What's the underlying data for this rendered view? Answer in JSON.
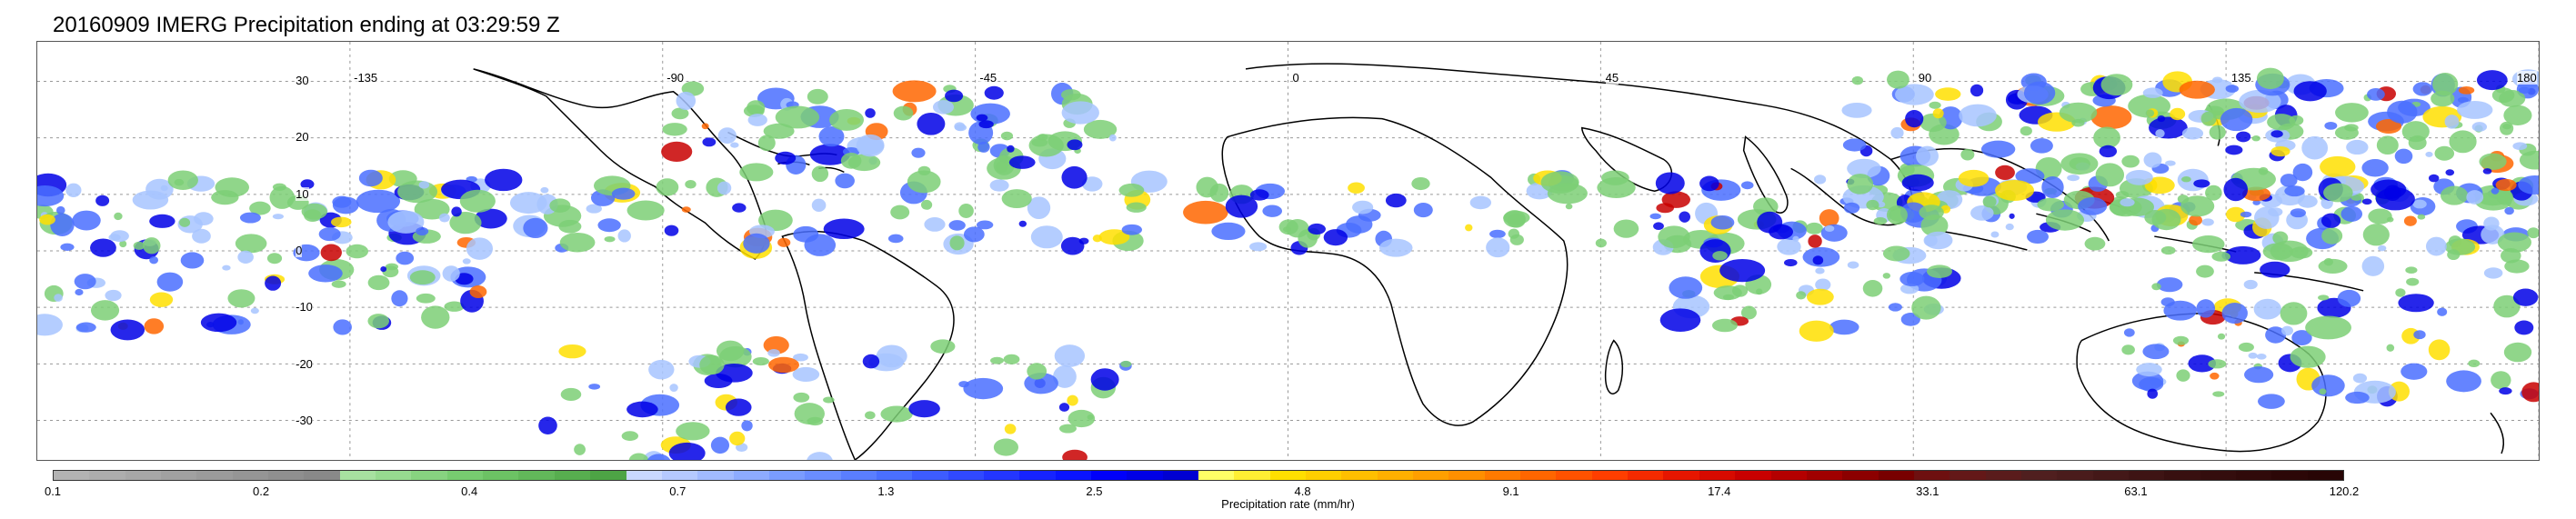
{
  "title": "20160909 IMERG Precipitation ending at 03:29:59 Z",
  "map": {
    "lon_labels": [
      "-135",
      "-90",
      "-45",
      "0",
      "45",
      "90",
      "135",
      "180"
    ],
    "lat_labels": [
      "30",
      "20",
      "10",
      "0",
      "-10",
      "-20",
      "-30"
    ],
    "lon_values": [
      -135,
      -90,
      -45,
      0,
      45,
      90,
      135,
      180
    ],
    "lat_values": [
      30,
      20,
      10,
      0,
      -10,
      -20,
      -30
    ],
    "lon_range": [
      -180,
      180
    ],
    "lat_range": [
      -37,
      37
    ],
    "grid": "dotted"
  },
  "colorbar": {
    "label": "Precipitation rate (mm/hr)",
    "tick_labels": [
      "0.1",
      "0.2",
      "0.4",
      "0.7",
      "1.3",
      "2.5",
      "4.8",
      "9.1",
      "17.4",
      "33.1",
      "63.1",
      "120.2"
    ],
    "colors": [
      "#b3b3b3",
      "#adadad",
      "#a7a7a7",
      "#a1a1a1",
      "#9b9b9b",
      "#959595",
      "#8f8f8f",
      "#898989",
      "#a7e1a0",
      "#97da90",
      "#87d380",
      "#77cc70",
      "#6cc264",
      "#62b85a",
      "#57ae4f",
      "#4da445",
      "#c9d8ff",
      "#b5c9ff",
      "#a1baff",
      "#8dabff",
      "#7a9cff",
      "#6a8dff",
      "#5a7eff",
      "#4a6fff",
      "#3d5cff",
      "#3049ff",
      "#2336ff",
      "#1623ff",
      "#0a14ff",
      "#0000fa",
      "#0000e6",
      "#0000d2",
      "#ffff66",
      "#ffef33",
      "#ffdf00",
      "#ffcf00",
      "#ffbf00",
      "#ffaf00",
      "#ff9f00",
      "#ff8f00",
      "#ff7a00",
      "#ff6600",
      "#ff5200",
      "#ff3e00",
      "#f52a00",
      "#e61600",
      "#d70a00",
      "#c80000",
      "#b40000",
      "#a00000",
      "#8c0000",
      "#780000",
      "#6e1010",
      "#641818",
      "#5a1c1c",
      "#501f1f",
      "#4a1c1c",
      "#441818",
      "#3e1414",
      "#381010",
      "#340d0d",
      "#300a0a",
      "#2c0707",
      "#280505"
    ]
  },
  "rain_palette": [
    "#7ccf75",
    "#a7c4ff",
    "#4a6fff",
    "#0000e6",
    "#ffdf00",
    "#ff6600",
    "#c80000"
  ]
}
